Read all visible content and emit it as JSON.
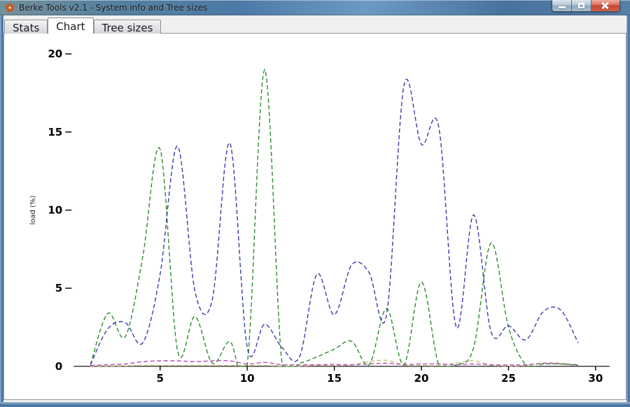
{
  "window": {
    "title": "Berke Tools v2.1 - System info and Tree sizes",
    "icon_color": "#e2641e"
  },
  "tabs": [
    {
      "label": "Stats",
      "active": false
    },
    {
      "label": "Chart",
      "active": true
    },
    {
      "label": "Tree sizes",
      "active": false
    }
  ],
  "chart_data": {
    "type": "line",
    "title": "",
    "xlabel": "",
    "ylabel": "load (%)",
    "xlim": [
      0,
      30
    ],
    "ylim": [
      0,
      20
    ],
    "x_ticks": [
      5,
      10,
      15,
      20,
      25,
      30
    ],
    "y_ticks": [
      0,
      5,
      10,
      15,
      20
    ],
    "grid": false,
    "legend": "none",
    "line_style": "dashed",
    "axis_color": "#000000",
    "x": [
      1,
      2,
      3,
      4,
      5,
      6,
      7,
      8,
      9,
      10,
      11,
      12,
      13,
      14,
      15,
      16,
      17,
      18,
      19,
      20,
      21,
      22,
      23,
      24,
      25,
      26,
      27,
      28,
      29
    ],
    "series": [
      {
        "name": "tan",
        "color": "#c9c07a",
        "values": [
          0.02,
          0.02,
          0.03,
          0.05,
          0.05,
          0.05,
          0.05,
          0.05,
          0.05,
          0.05,
          0.05,
          0.02,
          0.02,
          0.05,
          0.05,
          0.1,
          0.3,
          0.38,
          0.08,
          0.05,
          0.05,
          0.2,
          0.35,
          0.08,
          0.02,
          0.05,
          0.2,
          0.2,
          0.05
        ]
      },
      {
        "name": "magenta",
        "color": "#b84ab8",
        "values": [
          0.05,
          0.1,
          0.15,
          0.3,
          0.35,
          0.35,
          0.3,
          0.35,
          0.35,
          0.15,
          0.25,
          0.1,
          0.1,
          0.1,
          0.12,
          0.1,
          0.15,
          0.2,
          0.12,
          0.15,
          0.15,
          0.1,
          0.15,
          0.1,
          0.08,
          0.1,
          0.2,
          0.15,
          0.05
        ]
      },
      {
        "name": "green",
        "color": "#2e8b2e",
        "values": [
          0.1,
          3.4,
          1.9,
          7.0,
          13.9,
          1.0,
          3.2,
          0.2,
          1.6,
          0.1,
          19.0,
          0.1,
          0.2,
          0.6,
          1.1,
          1.6,
          0.1,
          3.7,
          0.1,
          5.4,
          0.1,
          0.1,
          1.2,
          7.9,
          2.5,
          0.1,
          0.15,
          0.15,
          0.1
        ]
      },
      {
        "name": "blue",
        "color": "#3c3caa",
        "values": [
          0.1,
          2.4,
          2.8,
          1.5,
          5.9,
          14.1,
          4.8,
          4.3,
          14.3,
          1.2,
          2.7,
          1.2,
          0.6,
          5.9,
          3.3,
          6.5,
          6.0,
          3.3,
          18.0,
          14.2,
          15.3,
          2.5,
          9.7,
          2.2,
          2.6,
          1.7,
          3.5,
          3.6,
          1.5
        ]
      }
    ]
  }
}
